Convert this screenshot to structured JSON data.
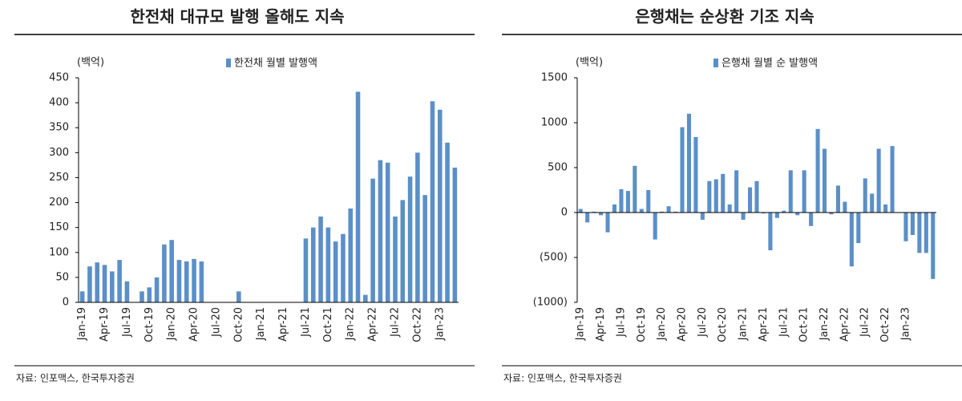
{
  "chart_data": [
    {
      "type": "bar",
      "title": "한전채 대규모 발행 올해도 지속",
      "unit": "(백억)",
      "source": "자료: 인포맥스, 한국투자증권",
      "categories": [
        "Jan-19",
        null,
        null,
        "Apr-19",
        null,
        null,
        "Jul-19",
        null,
        null,
        "Oct-19",
        null,
        null,
        "Jan-20",
        null,
        null,
        "Apr-20",
        null,
        null,
        "Jul-20",
        null,
        null,
        "Oct-20",
        null,
        null,
        "Jan-21",
        null,
        null,
        "Apr-21",
        null,
        null,
        "Jul-21",
        null,
        null,
        "Oct-21",
        null,
        null,
        "Jan-22",
        null,
        null,
        "Apr-22",
        null,
        null,
        "Jul-22",
        null,
        null,
        "Oct-22",
        null,
        null,
        "Jan-23",
        null,
        null
      ],
      "series": [
        {
          "name": "한전채 월별 발행액",
          "color": "#5b8fc7",
          "values": [
            22,
            72,
            80,
            75,
            62,
            85,
            42,
            0,
            22,
            30,
            50,
            116,
            125,
            85,
            82,
            87,
            82,
            0,
            0,
            0,
            0,
            22,
            0,
            0,
            0,
            0,
            0,
            0,
            0,
            0,
            128,
            150,
            172,
            150,
            122,
            137,
            188,
            422,
            15,
            248,
            285,
            280,
            172,
            205,
            252,
            300,
            215,
            403,
            386,
            320,
            270
          ]
        }
      ],
      "ylim": [
        0,
        450
      ],
      "yticks": [
        0,
        50,
        100,
        150,
        200,
        250,
        300,
        350,
        400,
        450
      ]
    },
    {
      "type": "bar",
      "title": "은행채는 순상환 기조 지속",
      "unit": "(백억)",
      "source": "자료: 인포맥스, 한국투자증권",
      "categories": [
        "Jan-19",
        null,
        null,
        "Apr-19",
        null,
        null,
        "Jul-19",
        null,
        null,
        "Oct-19",
        null,
        null,
        "Jan-20",
        null,
        null,
        "Apr-20",
        null,
        null,
        "Jul-20",
        null,
        null,
        "Oct-20",
        null,
        null,
        "Jan-21",
        null,
        null,
        "Apr-21",
        null,
        null,
        "Jul-21",
        null,
        null,
        "Oct-21",
        null,
        null,
        "Jan-22",
        null,
        null,
        "Apr-22",
        null,
        null,
        "Jul-22",
        null,
        null,
        "Oct-22",
        null,
        null,
        "Jan-23",
        null,
        null,
        null,
        null
      ],
      "series": [
        {
          "name": "은행채 월별 순 발행액",
          "color": "#5b8fc7",
          "values": [
            40,
            -110,
            10,
            -30,
            -220,
            90,
            260,
            240,
            520,
            40,
            250,
            -300,
            10,
            70,
            10,
            950,
            1100,
            840,
            -80,
            350,
            370,
            430,
            90,
            470,
            -80,
            280,
            350,
            -10,
            -420,
            -60,
            20,
            470,
            -30,
            470,
            -150,
            930,
            710,
            -20,
            300,
            120,
            -600,
            -340,
            380,
            210,
            710,
            90,
            740,
            0,
            -320,
            -250,
            -450,
            -450,
            -740
          ]
        }
      ],
      "ylim": [
        -1000,
        1500
      ],
      "yticks": [
        {
          "value": -1000,
          "label": "(1000)"
        },
        {
          "value": -500,
          "label": "(500)"
        },
        0,
        500,
        1000,
        1500
      ]
    }
  ]
}
